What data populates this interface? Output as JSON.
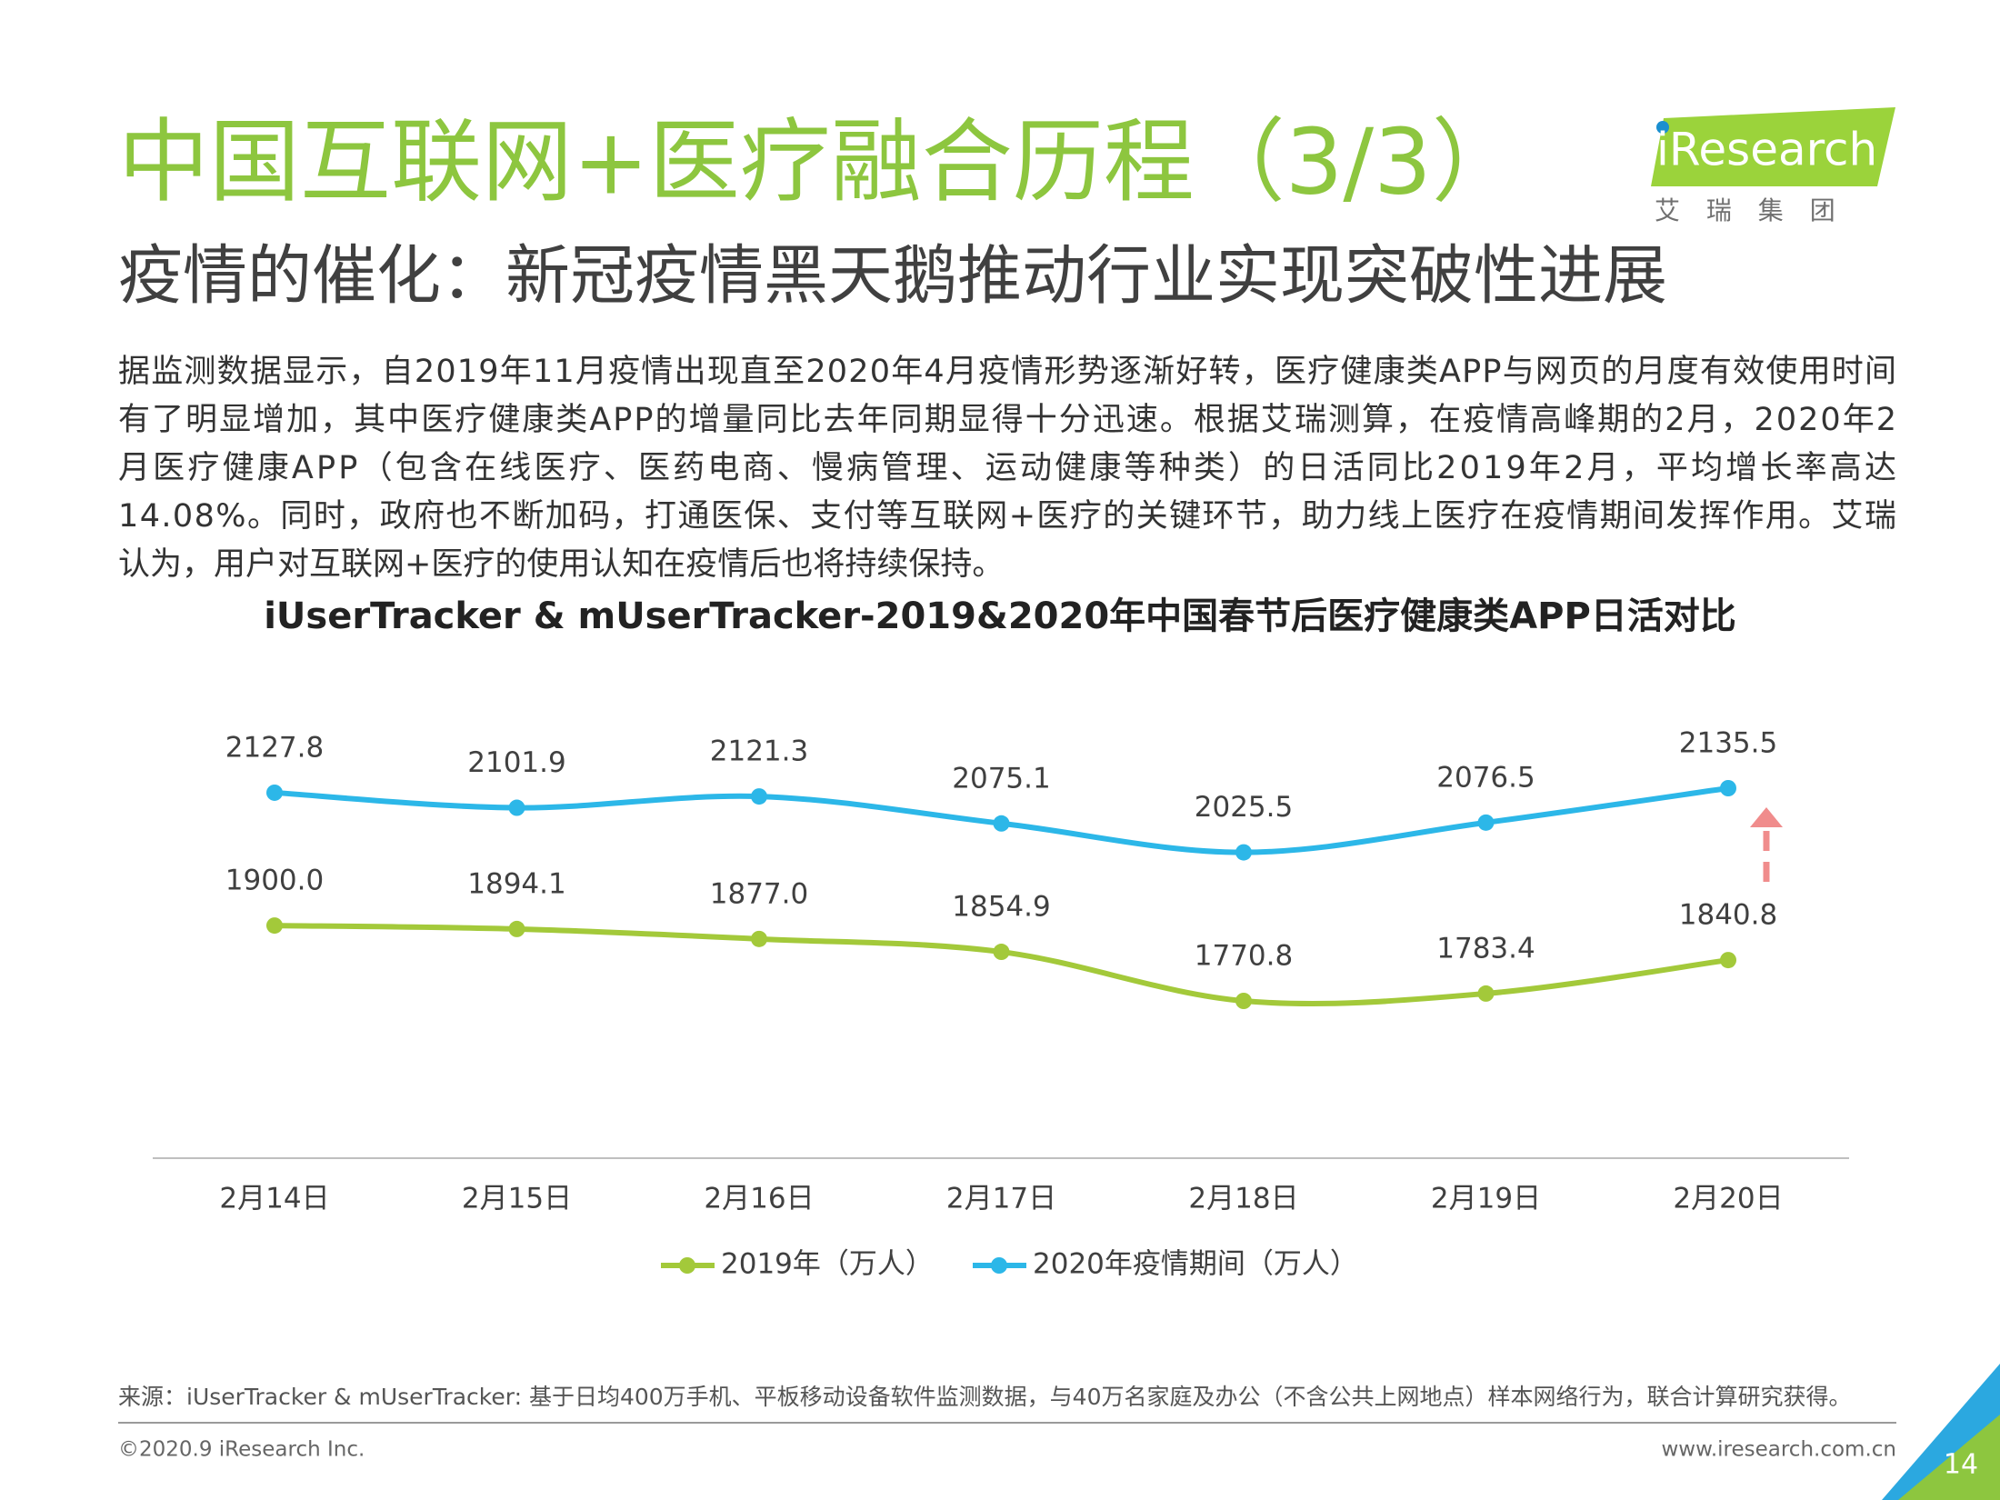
{
  "header": {
    "title": "中国互联网+医疗融合历程（3/3）",
    "subtitle": "疫情的催化：新冠疫情黑天鹅推动行业实现突破性进展",
    "logo": "iResearch",
    "logo_sub": "艾 瑞 集 团"
  },
  "body": {
    "lines": [
      "据监测数据显示，自2019年11月疫情出现直至2020年4月疫情形势逐渐好转，医疗健康类APP与网页的月度有效使用时间",
      "有了明显增加，其中医疗健康类APP的增量同比去年同期显得十分迅速。根据艾瑞测算，在疫情高峰期的2月，2020年2",
      "月医疗健康APP（包含在线医疗、医药电商、慢病管理、运动健康等种类）的日活同比2019年2月，平均增长率高达",
      "14.08%。同时，政府也不断加码，打通医保、支付等互联网+医疗的关键环节，助力线上医疗在疫情期间发挥作用。艾瑞",
      "认为，用户对互联网+医疗的使用认知在疫情后也将持续保持。"
    ]
  },
  "chart_data": {
    "type": "line",
    "title": "iUserTracker & mUserTracker-2019&2020年中国春节后医疗健康类APP日活对比",
    "categories": [
      "2月14日",
      "2月15日",
      "2月16日",
      "2月17日",
      "2月18日",
      "2月19日",
      "2月20日"
    ],
    "series": [
      {
        "name": "2019年（万人）",
        "color": "#a3c93a",
        "values": [
          1900.0,
          1894.1,
          1877.0,
          1854.9,
          1770.8,
          1783.4,
          1840.8
        ],
        "value_labels": [
          "1900.0",
          "1894.1",
          "1877.0",
          "1854.9",
          "1770.8",
          "1783.4",
          "1840.8"
        ]
      },
      {
        "name": "2020年疫情期间（万人）",
        "color": "#2cb7e8",
        "values": [
          2127.8,
          2101.9,
          2121.3,
          2075.1,
          2025.5,
          2076.5,
          2135.5
        ],
        "value_labels": [
          "2127.8",
          "2101.9",
          "2121.3",
          "2075.1",
          "2025.5",
          "2076.5",
          "2135.5"
        ]
      }
    ],
    "legend": "bottom"
  },
  "footer": {
    "source": "来源：iUserTracker & mUserTracker: 基于日均400万手机、平板移动设备软件监测数据，与40万名家庭及办公（不含公共上网地点）样本网络行为，联合计算研究获得。",
    "copyright": "©2020.9 iResearch Inc.",
    "website": "www.iresearch.com.cn",
    "page": "14"
  }
}
